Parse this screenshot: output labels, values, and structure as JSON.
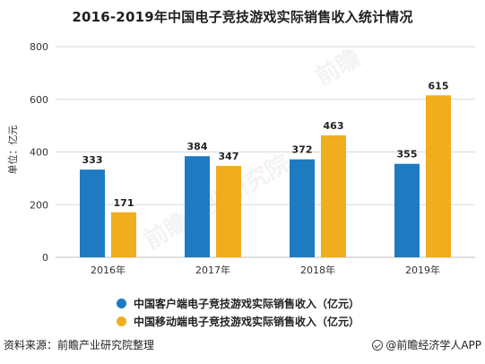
{
  "title": "2016-2019年中国电子竞技游戏实际销售收入统计情况",
  "source": "资料来源：前瞻产业研究院整理",
  "brand": "@前瞻经济学人APP",
  "watermark": {
    "text_1": "前瞻产业研究院",
    "text_2": "前瞻"
  },
  "colors": {
    "series_1": "#1f7bc1",
    "series_2": "#f0ad1d",
    "grid": "#d9d9d9",
    "axis_text": "#333333"
  },
  "chart_data": {
    "type": "bar",
    "title": "2016-2019年中国电子竞技游戏实际销售收入统计情况",
    "categories": [
      "2016年",
      "2017年",
      "2018年",
      "2019年"
    ],
    "series": [
      {
        "name": "中国客户端电子竞技游戏实际销售收入（亿元）",
        "values": [
          333,
          384,
          372,
          355
        ]
      },
      {
        "name": "中国移动端电子竞技游戏实际销售收入（亿元）",
        "values": [
          171,
          347,
          463,
          615
        ]
      }
    ],
    "ylabel": "单位：亿元",
    "xlabel": "",
    "ylim": [
      0,
      800
    ],
    "yticks": [
      0,
      200,
      400,
      600,
      800
    ],
    "grid": true,
    "legend_position": "bottom"
  }
}
